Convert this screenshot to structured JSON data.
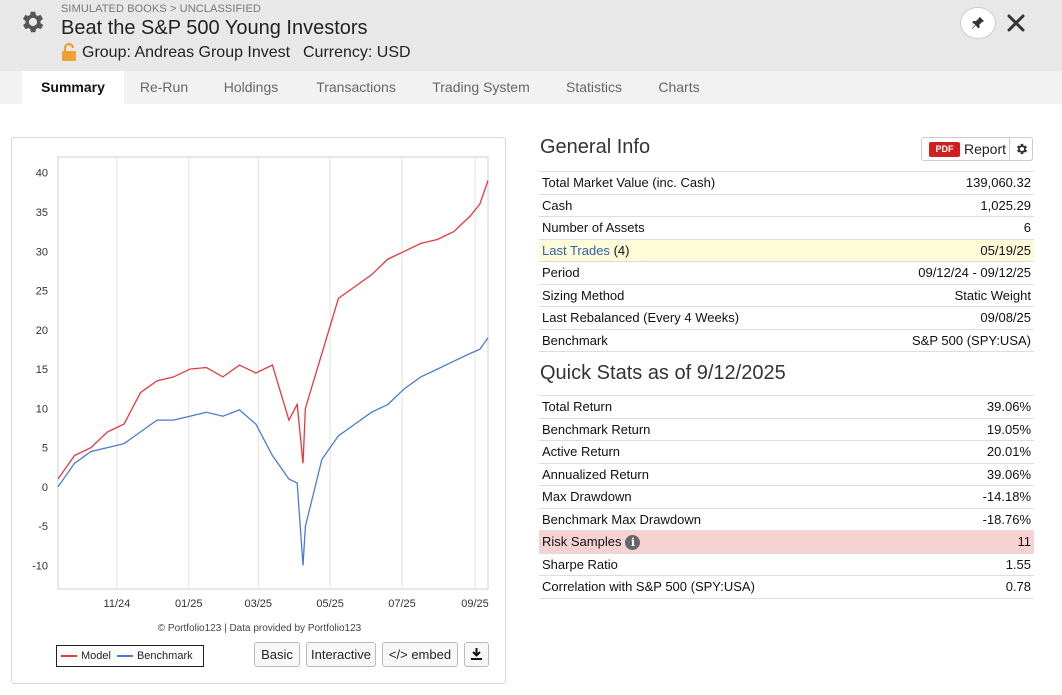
{
  "header": {
    "breadcrumb": "SIMULATED BOOKS > UNCLASSIFIED",
    "title": "Beat the S&P 500 Young Investors",
    "group": "Group: Andreas Group Invest",
    "currency": "Currency: USD",
    "icons": [
      "gear-icon",
      "lock-icon",
      "pin-icon",
      "close-icon"
    ]
  },
  "tabs": [
    "Summary",
    "Re-Run",
    "Holdings",
    "Transactions",
    "Trading System",
    "Statistics",
    "Charts"
  ],
  "active_tab": "Summary",
  "chart": {
    "credit": "© Portfolio123 | Data provided by Portfolio123",
    "legend": [
      {
        "name": "Model",
        "color": "#e8383d"
      },
      {
        "name": "Benchmark",
        "color": "#4a7bd0"
      }
    ],
    "buttons": {
      "basic": "Basic",
      "interactive": "Interactive",
      "embed": "</> embed"
    }
  },
  "chart_data": {
    "type": "line",
    "x_tick_labels": [
      "11/24",
      "01/25",
      "03/25",
      "05/25",
      "07/25",
      "09/25"
    ],
    "y_tick_labels": [
      "40",
      "35",
      "30",
      "25",
      "20",
      "15",
      "10",
      "5",
      "0",
      "-5",
      "-10"
    ],
    "ylim": [
      -13,
      42
    ],
    "x": [
      "09/12/24",
      "09/26/24",
      "10/10/24",
      "10/24/24",
      "11/07/24",
      "11/21/24",
      "12/05/24",
      "12/19/24",
      "01/02/25",
      "01/16/25",
      "01/30/25",
      "02/13/25",
      "02/27/25",
      "03/13/25",
      "03/27/25",
      "04/03/25",
      "04/08/25",
      "04/10/25",
      "04/24/25",
      "05/08/25",
      "05/22/25",
      "06/05/25",
      "06/19/25",
      "07/03/25",
      "07/17/25",
      "07/31/25",
      "08/14/25",
      "08/28/25",
      "09/05/25",
      "09/12/25"
    ],
    "series": [
      {
        "name": "Model",
        "color": "#e8383d",
        "values": [
          1,
          4,
          5,
          7,
          8,
          12,
          13.5,
          14,
          15,
          15.2,
          14,
          15.5,
          14.5,
          15.5,
          8.5,
          10.5,
          3,
          10,
          17,
          24,
          25.5,
          27,
          29,
          30,
          31,
          31.5,
          32.5,
          34.5,
          36,
          39
        ]
      },
      {
        "name": "Benchmark",
        "color": "#4a7bd0",
        "values": [
          0,
          3,
          4.5,
          5,
          5.5,
          7,
          8.5,
          8.5,
          9,
          9.5,
          9,
          9.8,
          8,
          4,
          1,
          0.5,
          -10,
          -5,
          3.5,
          6.5,
          8,
          9.5,
          10.5,
          12.5,
          14,
          15,
          16,
          17,
          17.5,
          19
        ]
      }
    ],
    "grid": "vertical"
  },
  "general_info": {
    "title": "General Info",
    "report_label": "Report",
    "pdf_badge": "PDF",
    "rows": [
      {
        "label": "Total Market Value (inc. Cash)",
        "value": "139,060.32"
      },
      {
        "label": "Cash",
        "value": "1,025.29"
      },
      {
        "label": "Number of Assets",
        "value": "6"
      },
      {
        "label": "Last Trades",
        "count": "(4)",
        "value": "05/19/25"
      },
      {
        "label": "Period",
        "value": "09/12/24 - 09/12/25"
      },
      {
        "label": "Sizing Method",
        "value": "Static Weight"
      },
      {
        "label": "Last Rebalanced (Every 4 Weeks)",
        "value": "09/08/25"
      },
      {
        "label": "Benchmark",
        "value": "S&P 500 (SPY:USA)"
      }
    ]
  },
  "quick_stats": {
    "title": "Quick Stats as of 9/12/2025",
    "rows": [
      {
        "label": "Total Return",
        "value": "39.06%"
      },
      {
        "label": "Benchmark Return",
        "value": "19.05%"
      },
      {
        "label": "Active Return",
        "value": "20.01%"
      },
      {
        "label": "Annualized Return",
        "value": "39.06%"
      },
      {
        "label": "Max Drawdown",
        "value": "-14.18%"
      },
      {
        "label": "Benchmark Max Drawdown",
        "value": "-18.76%"
      },
      {
        "label": "Risk Samples",
        "value": "11"
      },
      {
        "label": "Sharpe Ratio",
        "value": "1.55"
      },
      {
        "label": "Correlation with S&P 500 (SPY:USA)",
        "value": "0.78"
      }
    ]
  },
  "colors": {
    "model": "#e8383d",
    "benchmark": "#4a7bd0",
    "negative": "#c81e1e",
    "link": "#2c62b0",
    "pdf": "#d01f1f"
  }
}
